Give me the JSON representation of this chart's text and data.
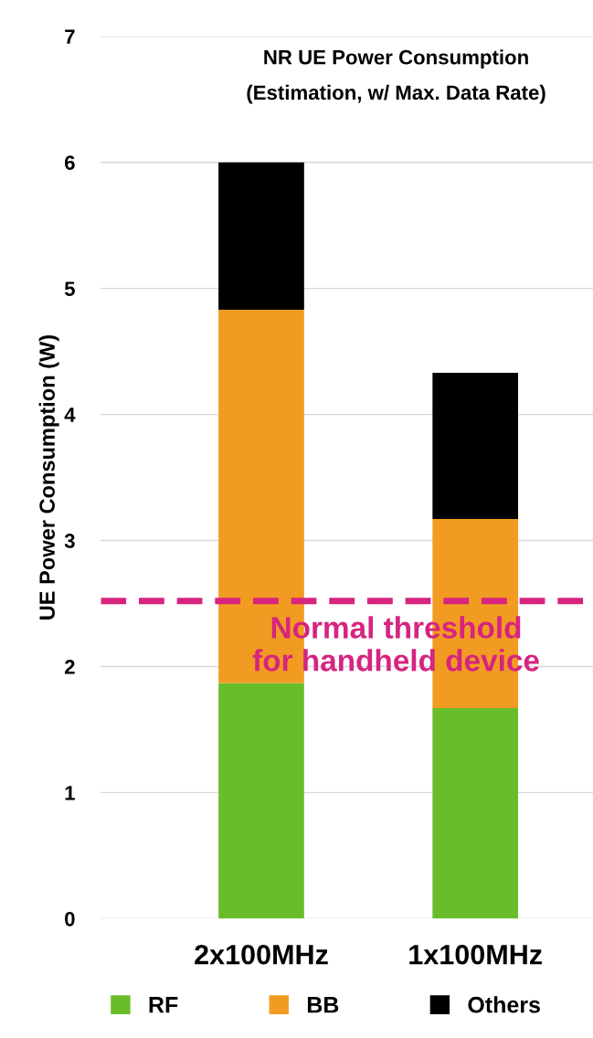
{
  "chart_data": {
    "type": "bar",
    "title": "NR UE Power Consumption",
    "subtitle": "(Estimation, w/ Max. Data Rate)",
    "ylabel": "UE Power Consumption (W)",
    "categories": [
      "2x100MHz",
      "1x100MHz"
    ],
    "series": [
      {
        "name": "RF",
        "color": "#6abd2a",
        "values": [
          1.87,
          1.67
        ]
      },
      {
        "name": "BB",
        "color": "#f29b22",
        "values": [
          2.96,
          1.5
        ]
      },
      {
        "name": "Others",
        "color": "#000000",
        "values": [
          1.17,
          1.16
        ]
      }
    ],
    "stacked": true,
    "ylim": [
      0,
      7
    ],
    "yticks": [
      0,
      1,
      2,
      3,
      4,
      5,
      6,
      7
    ],
    "grid": "y",
    "legend": "bottom",
    "ref_lines": [
      {
        "axis": "y",
        "value": 2.52,
        "label": "Normal threshold\nfor handheld device",
        "color": "#d6247f",
        "line_style": "dashed"
      }
    ]
  }
}
